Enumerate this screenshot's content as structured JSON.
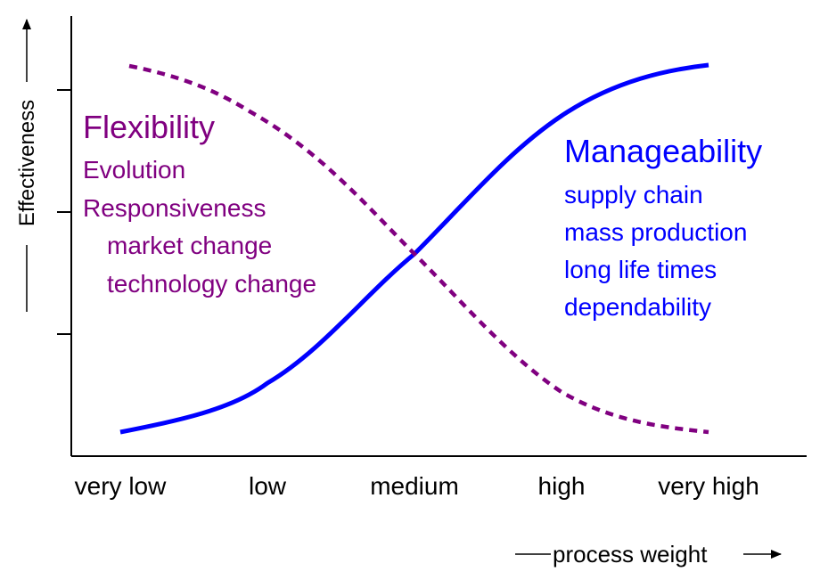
{
  "axes": {
    "y_label": "Effectiveness",
    "x_label": "process weight",
    "x_categories": [
      "very low",
      "low",
      "medium",
      "high",
      "very high"
    ]
  },
  "left_group": {
    "title": "Flexibility",
    "items": [
      "Evolution",
      "Responsiveness"
    ],
    "subitems": [
      "market change",
      "technology change"
    ]
  },
  "right_group": {
    "title": "Manageability",
    "items": [
      "supply chain",
      "mass production",
      "long life times",
      "dependability"
    ]
  }
}
